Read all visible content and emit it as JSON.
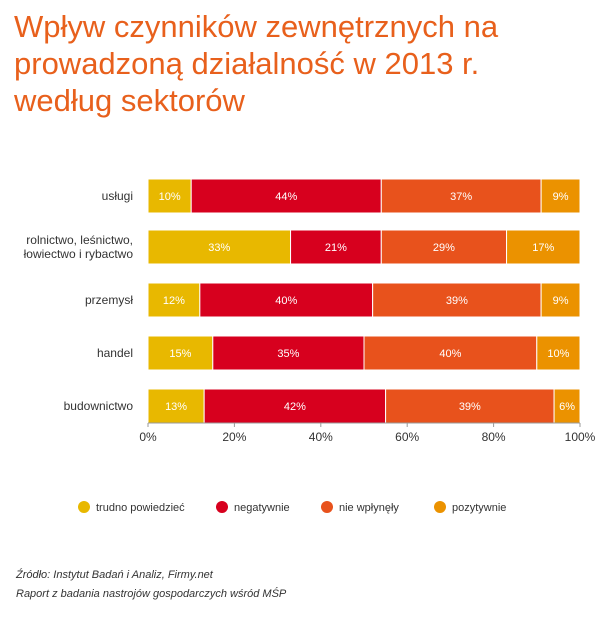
{
  "title_lines": [
    "Wpływ czynników zewnętrznych na",
    "prowadzoną działalność w 2013 r.",
    "według sektorów"
  ],
  "footer": {
    "source": "Źródło: Instytut Badań i Analiz, Firmy.net",
    "report": "Raport z badania nastrojów gospodarczych wśród MŚP"
  },
  "chart_data": {
    "type": "bar",
    "orientation": "horizontal",
    "stacked": true,
    "normalized": true,
    "title": "Wpływ czynników zewnętrznych na prowadzoną działalność w 2013 r. według sektorów",
    "categories": [
      [
        "usługi"
      ],
      [
        "rolnictwo, leśnictwo,",
        "łowiectwo i rybactwo"
      ],
      [
        "przemysł"
      ],
      [
        "handel"
      ],
      [
        "budownictwo"
      ]
    ],
    "series": [
      {
        "name": "trudno powiedzieć",
        "color": "#e8b800",
        "values": [
          10,
          33,
          12,
          15,
          13
        ]
      },
      {
        "name": "negatywnie",
        "color": "#d7001e",
        "values": [
          44,
          21,
          40,
          35,
          42
        ]
      },
      {
        "name": "nie wpłynęły",
        "color": "#e8521c",
        "values": [
          37,
          29,
          39,
          40,
          39
        ]
      },
      {
        "name": "pozytywnie",
        "color": "#eb9200",
        "values": [
          9,
          17,
          9,
          10,
          6
        ]
      }
    ],
    "xlim": [
      0,
      100
    ],
    "xticks": [
      "0%",
      "20%",
      "40%",
      "60%",
      "80%",
      "100%"
    ],
    "legend_position": "bottom",
    "grid": false
  }
}
